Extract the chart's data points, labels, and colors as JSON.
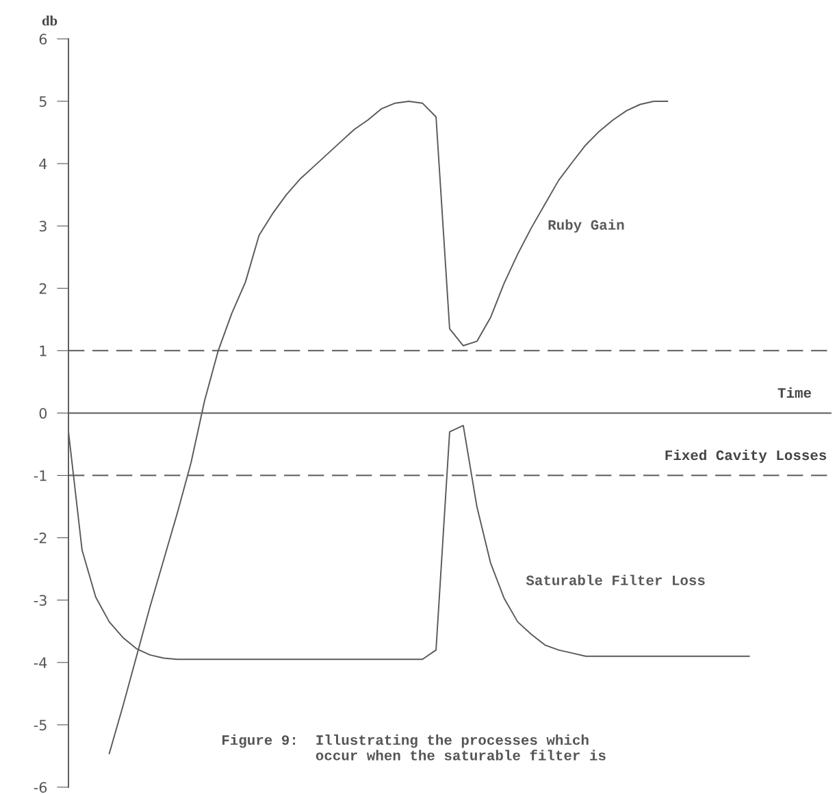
{
  "chart_data": {
    "type": "line",
    "ylabel": "db",
    "xlabel": "Time",
    "categories": [
      null,
      null,
      null,
      null,
      null,
      null,
      null,
      null,
      null,
      null,
      null,
      null,
      null,
      null,
      null,
      null,
      null,
      null,
      null,
      null,
      null,
      null,
      null,
      null,
      null,
      null,
      null,
      null,
      null,
      null,
      null,
      null,
      null,
      null,
      null,
      null,
      null,
      null,
      null,
      null,
      null,
      null,
      null,
      null,
      null,
      null,
      null,
      null,
      null,
      null,
      null,
      null,
      null,
      null,
      null,
      null,
      null
    ],
    "series": [
      {
        "name": "Ruby Gain",
        "color": "#5a5a5a",
        "values": [
          null,
          null,
          null,
          -5.46,
          -4.7,
          -3.9,
          -3.1,
          -2.35,
          -1.6,
          -0.8,
          0.2,
          1.0,
          1.6,
          2.1,
          2.85,
          3.2,
          3.5,
          3.75,
          3.95,
          4.15,
          4.35,
          4.55,
          4.7,
          4.88,
          4.97,
          5.0,
          4.97,
          4.75,
          1.35,
          1.08,
          1.15,
          1.53,
          2.08,
          2.55,
          2.97,
          3.35,
          3.73,
          4.02,
          4.3,
          4.52,
          4.7,
          4.85,
          4.95,
          5.0,
          5.0,
          null,
          null,
          null,
          null,
          null,
          null,
          null,
          null,
          null,
          null,
          null,
          null
        ]
      },
      {
        "name": "Saturable Filter Loss",
        "color": "#5a5a5a",
        "values": [
          -0.3,
          -2.2,
          -2.95,
          -3.35,
          -3.6,
          -3.78,
          -3.88,
          -3.93,
          -3.95,
          -3.95,
          -3.95,
          -3.95,
          -3.95,
          -3.95,
          -3.95,
          -3.95,
          -3.95,
          -3.95,
          -3.95,
          -3.95,
          -3.95,
          -3.95,
          -3.95,
          -3.95,
          -3.95,
          -3.95,
          -3.95,
          -3.8,
          -0.3,
          -0.2,
          -1.5,
          -2.4,
          -2.97,
          -3.35,
          -3.55,
          -3.72,
          -3.8,
          -3.85,
          -3.9,
          -3.9,
          -3.9,
          -3.9,
          -3.9,
          -3.9,
          -3.9,
          -3.9,
          -3.9,
          -3.9,
          -3.9,
          -3.9,
          -3.9,
          null,
          null,
          null,
          null,
          null,
          null
        ]
      }
    ],
    "ylim": [
      -6,
      6
    ],
    "yticks": [
      -6,
      -5,
      -4,
      -3,
      -2,
      -1,
      0,
      1,
      2,
      3,
      4,
      5,
      6
    ],
    "ref_lines": [
      {
        "axis": "y",
        "value": 1,
        "line_style": "dashed",
        "color": "#5a5a5a"
      },
      {
        "axis": "y",
        "value": -1,
        "label": "Fixed Cavity Losses",
        "line_style": "dashed",
        "color": "#5a5a5a"
      }
    ],
    "annotations": [
      "Figure 9:  Illustrating the processes which\n           occur when the saturable filter is"
    ],
    "grid": false,
    "legend": false,
    "marker": "none",
    "line_style": "solid",
    "tick_labels": "y"
  }
}
